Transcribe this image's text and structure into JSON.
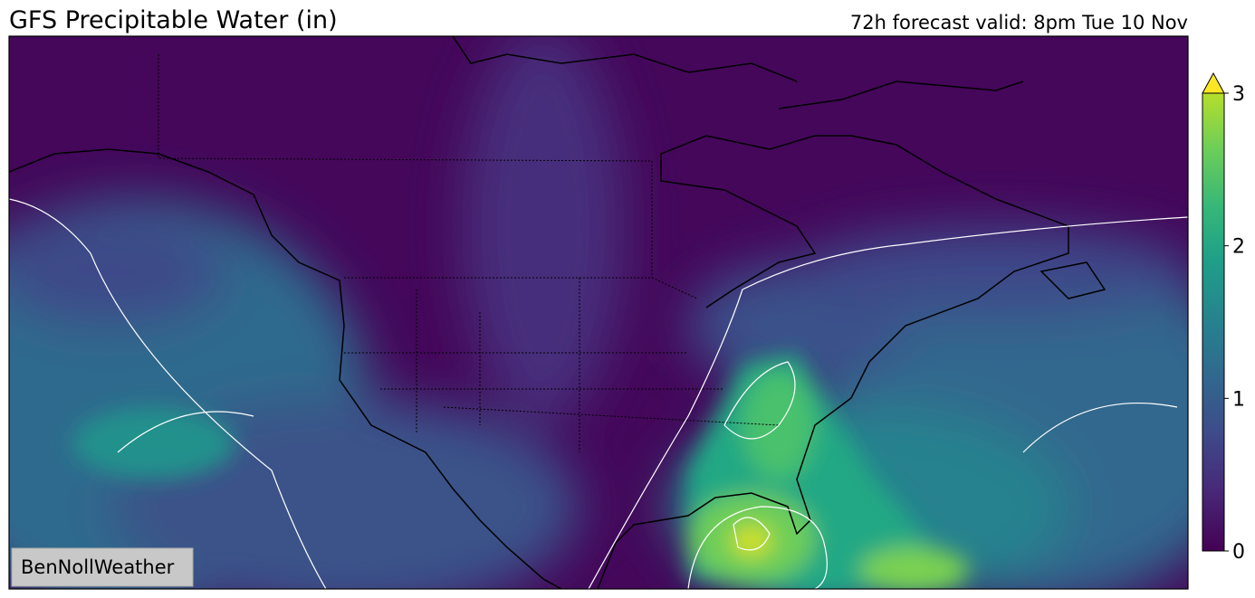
{
  "header": {
    "title": "GFS Precipitable Water (in)",
    "subtitle": "72h forecast valid: 8pm Tue 10 Nov"
  },
  "colorbar": {
    "lim": [
      0,
      3
    ],
    "ticks": [
      0,
      1,
      2,
      3
    ],
    "extend": "max"
  },
  "watermark": "BenNollWeather"
}
